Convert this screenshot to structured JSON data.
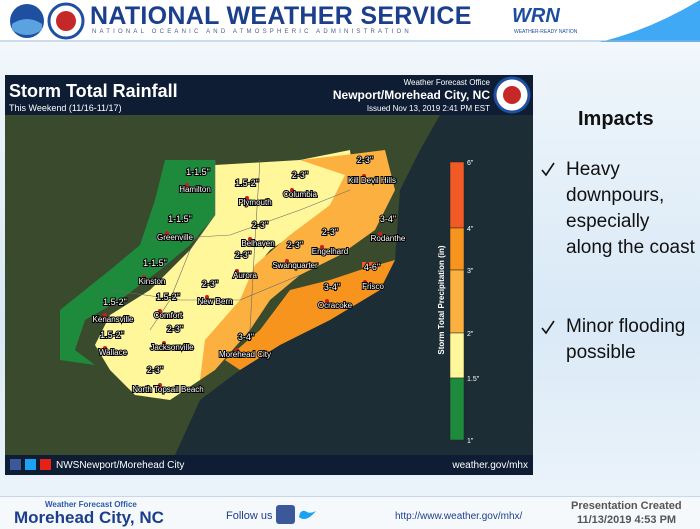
{
  "header": {
    "title": "NATIONAL WEATHER SERVICE",
    "subtitle": "NATIONAL OCEANIC AND ATMOSPHERIC ADMINISTRATION",
    "brand": "WRN",
    "brand_tagline": "WEATHER-READY NATION"
  },
  "map": {
    "title": "Storm Total Rainfall",
    "subtitle": "This Weekend (11/16-11/17)",
    "office_label": "Weather Forecast Office",
    "office": "Newport/Morehead City, NC",
    "issued": "Issued Nov 13, 2019 2:41 PM EST",
    "legend": {
      "title": "Storm Total Precipitation (in)",
      "ticks": [
        "6\"",
        "4\"",
        "3\"",
        "2\"",
        "1.5\"",
        "1\""
      ],
      "colors": [
        "#f15a24",
        "#f7941d",
        "#fbb040",
        "#fff799",
        "#1e8a3c"
      ]
    },
    "places": [
      {
        "amount": "1-1.5\"",
        "name": "Hamilton"
      },
      {
        "amount": "1.5-2\"",
        "name": "Plymouth"
      },
      {
        "amount": "2-3\"",
        "name": "Columbia"
      },
      {
        "amount": "2-3\"",
        "name": "Kill Devil Hills"
      },
      {
        "amount": "1-1.5\"",
        "name": "Greenville"
      },
      {
        "amount": "2-3\"",
        "name": "Belhaven"
      },
      {
        "amount": "2-3\"",
        "name": "Swanquarter"
      },
      {
        "amount": "2-3\"",
        "name": "Engelhard"
      },
      {
        "amount": "3-4\"",
        "name": "Rodanthe"
      },
      {
        "amount": "1-1.5\"",
        "name": "Kinston"
      },
      {
        "amount": "2-3\"",
        "name": "Aurora"
      },
      {
        "amount": "4-6\"",
        "name": "Frisco"
      },
      {
        "amount": "3-4\"",
        "name": "Ocracoke"
      },
      {
        "amount": "1.5-2\"",
        "name": "Comfort"
      },
      {
        "amount": "2-3\"",
        "name": "New Bern"
      },
      {
        "amount": "1.5-2\"",
        "name": "Kenansville"
      },
      {
        "amount": "1.5-2\"",
        "name": "Wallace"
      },
      {
        "amount": "2-3\"",
        "name": "Jacksonville"
      },
      {
        "amount": "3-4\"",
        "name": "Morehead City"
      },
      {
        "amount": "2-3\"",
        "name": "North Topsail Beach"
      }
    ],
    "social": "NWSNewport/Morehead City",
    "website": "weather.gov/mhx"
  },
  "impacts": {
    "title": "Impacts",
    "items": [
      "Heavy downpours, especially along the coast",
      "Minor flooding possible"
    ]
  },
  "footer": {
    "office_label": "Weather Forecast Office",
    "office": "Morehead City, NC",
    "follow": "Follow us",
    "url": "http://www.weather.gov/mhx/",
    "created_label": "Presentation Created",
    "created": "11/13/2019 4:53 PM"
  }
}
